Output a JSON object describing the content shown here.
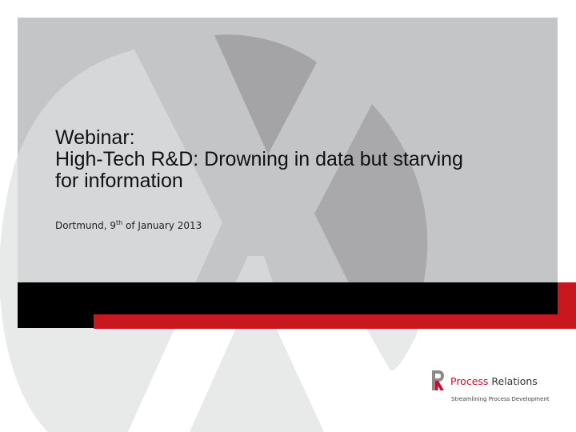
{
  "slide": {
    "title_line1": "Webinar:",
    "title_line2": "High-Tech R&D: Drowning in data but starving",
    "title_line3": "for information",
    "subtitle_before": "Dortmund, 9",
    "subtitle_sup": "th",
    "subtitle_after": " of January 2013"
  },
  "logo": {
    "name_word1": "Process",
    "name_word2": " Relations",
    "tagline": "Streamlining Process Development",
    "icon": "pr-logo-icon"
  },
  "colors": {
    "panel_gray": "#c4c5c7",
    "shape_dark": "#a4a4a6",
    "shape_light": "#e8e9e9",
    "band_black": "#000000",
    "band_red": "#c8171d",
    "brand_red": "#c8102e"
  }
}
